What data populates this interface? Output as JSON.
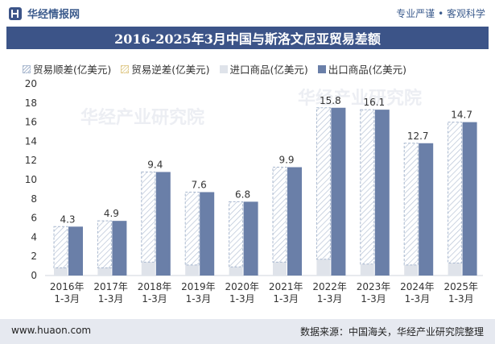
{
  "header": {
    "brand": "华经情报网",
    "slogan": "专业严谨 • 客观科学"
  },
  "footer": {
    "site": "www.huaon.com",
    "source": "数据来源：中国海关，华经产业研究院整理"
  },
  "watermark": "华经产业研究院",
  "colors": {
    "title_bg": "#3c5488",
    "export": "#6a7fa8",
    "import": "#dfe3ea",
    "surplus_hatch": "#a9b8cf",
    "footer_bg": "#e6e9f0"
  },
  "chart_data": {
    "type": "bar",
    "title": "2016-2025年3月中国与斯洛文尼亚贸易差额",
    "categories": [
      "2016年\n1-3月",
      "2017年\n1-3月",
      "2018年\n1-3月",
      "2019年\n1-3月",
      "2020年\n1-3月",
      "2021年\n1-3月",
      "2022年\n1-3月",
      "2023年\n1-3月",
      "2024年\n1-3月",
      "2025年\n1-3月"
    ],
    "ylim": [
      0,
      20
    ],
    "yticks": [
      0,
      2,
      4,
      6,
      8,
      10,
      12,
      14,
      16,
      18,
      20
    ],
    "legend": [
      "贸易顺差(亿美元)",
      "贸易逆差(亿美元)",
      "进口商品(亿美元)",
      "出口商品(亿美元)"
    ],
    "series": [
      {
        "name": "贸易顺差(亿美元)",
        "values": [
          4.3,
          4.9,
          9.4,
          7.6,
          6.8,
          9.9,
          15.8,
          16.1,
          12.7,
          14.7
        ]
      },
      {
        "name": "贸易逆差(亿美元)",
        "values": [
          0,
          0,
          0,
          0,
          0,
          0,
          0,
          0,
          0,
          0
        ]
      },
      {
        "name": "进口商品(亿美元)",
        "values": [
          0.8,
          0.8,
          1.4,
          1.1,
          0.9,
          1.4,
          1.7,
          1.2,
          1.1,
          1.3
        ]
      },
      {
        "name": "出口商品(亿美元)",
        "values": [
          5.1,
          5.7,
          10.8,
          8.7,
          7.7,
          11.3,
          17.5,
          17.3,
          13.8,
          16.0
        ]
      }
    ],
    "data_labels": [
      "4.3",
      "4.9",
      "9.4",
      "7.6",
      "6.8",
      "9.9",
      "15.8",
      "16.1",
      "12.7",
      "14.7"
    ]
  }
}
